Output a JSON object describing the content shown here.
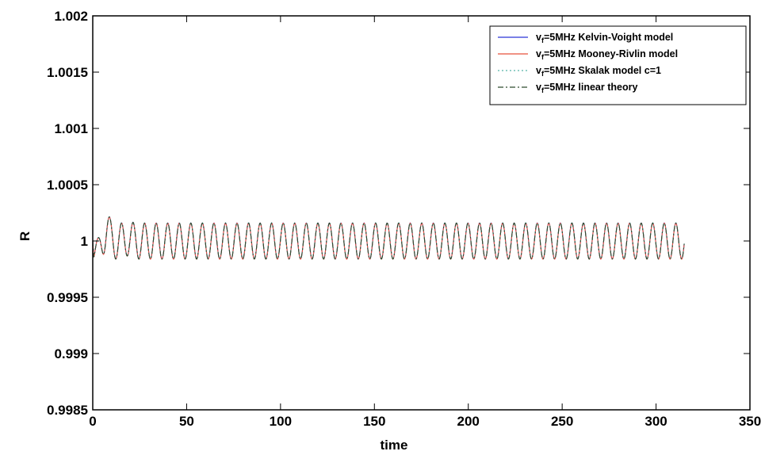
{
  "chart_data": {
    "type": "line",
    "title": "",
    "xlabel": "time",
    "ylabel": "R",
    "xlim": [
      0,
      350
    ],
    "ylim": [
      0.9985,
      1.002
    ],
    "x_ticks": [
      0,
      50,
      100,
      150,
      200,
      250,
      300,
      350
    ],
    "x_tick_labels": [
      "0",
      "50",
      "100",
      "150",
      "200",
      "250",
      "300",
      "350"
    ],
    "y_ticks": [
      0.9985,
      0.999,
      0.9995,
      1,
      1.0005,
      1.001,
      1.0015,
      1.002
    ],
    "y_tick_labels": [
      "0.9985",
      "0.999",
      "0.9995",
      "1",
      "1.0005",
      "1.001",
      "1.0015",
      "1.002"
    ],
    "grid": false,
    "legend_position": "top-right",
    "signal": {
      "x_range": [
        0,
        315
      ],
      "baseline": 1.0,
      "steady_amplitude": 0.00016,
      "period": 6.15,
      "transient": {
        "first_trough": {
          "x": 3,
          "y": 0.99971
        },
        "first_peak": {
          "x": 7.5,
          "y": 1.00028
        },
        "second_peak": {
          "x": 19,
          "y": 1.00022
        }
      }
    },
    "series": [
      {
        "name_prefix": "v",
        "name_sub": "f",
        "name_rest": "=5MHz Kelvin-Voight model",
        "color": "#2a34d8",
        "style": "solid"
      },
      {
        "name_prefix": "v",
        "name_sub": "f",
        "name_rest": "=5MHz Mooney-Rivlin model",
        "color": "#e8503a",
        "style": "solid"
      },
      {
        "name_prefix": "v",
        "name_sub": "f",
        "name_rest": "=5MHz Skalak model c=1",
        "color": "#55b3a8",
        "style": "dotted"
      },
      {
        "name_prefix": "v",
        "name_sub": "f",
        "name_rest": "=5MHz linear theory",
        "color": "#2e4a2e",
        "style": "dashdot"
      }
    ]
  }
}
